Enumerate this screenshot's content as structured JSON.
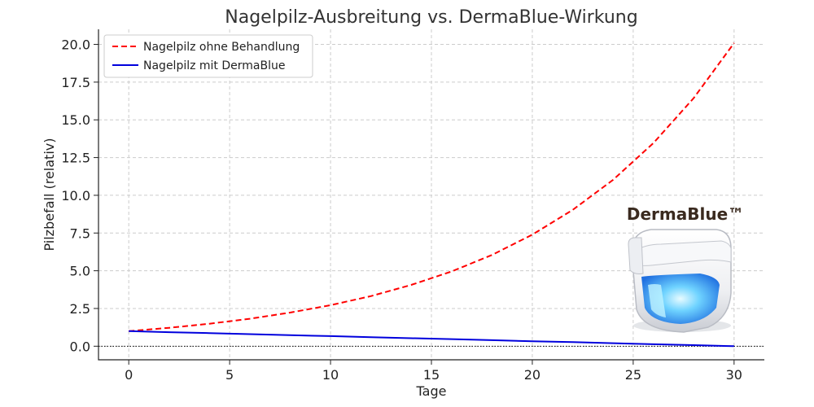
{
  "chart_data": {
    "type": "line",
    "title": "Nagelpilz-Ausbreitung vs. DermaBlue-Wirkung",
    "xlabel": "Tage",
    "ylabel": "Pilzbefall (relativ)",
    "xlim": [
      -1.5,
      31.5
    ],
    "ylim": [
      -0.9,
      21.0
    ],
    "xticks": [
      0,
      5,
      10,
      15,
      20,
      25,
      30
    ],
    "xtick_labels": [
      "0",
      "5",
      "10",
      "15",
      "20",
      "25",
      "30"
    ],
    "yticks": [
      0,
      2.5,
      5,
      7.5,
      10,
      12.5,
      15,
      17.5,
      20
    ],
    "ytick_labels": [
      "0.0",
      "2.5",
      "5.0",
      "7.5",
      "10.0",
      "12.5",
      "15.0",
      "17.5",
      "20.0"
    ],
    "grid": true,
    "legend_position": "top-left",
    "reference_line": {
      "y": 0,
      "style": "dotted",
      "color": "#000000"
    },
    "x": [
      0,
      2,
      4,
      6,
      8,
      10,
      12,
      14,
      16,
      18,
      20,
      22,
      24,
      26,
      28,
      30
    ],
    "series": [
      {
        "name": "Nagelpilz ohne Behandlung",
        "color": "#ff0000",
        "style": "dashed",
        "values": [
          1.0,
          1.22,
          1.49,
          1.82,
          2.23,
          2.72,
          3.32,
          4.06,
          4.95,
          6.05,
          7.39,
          9.03,
          11.02,
          13.46,
          16.44,
          20.09
        ]
      },
      {
        "name": "Nagelpilz mit DermaBlue",
        "color": "#0000dd",
        "style": "solid",
        "values": [
          1.0,
          0.93,
          0.87,
          0.8,
          0.73,
          0.67,
          0.6,
          0.53,
          0.47,
          0.4,
          0.33,
          0.27,
          0.2,
          0.13,
          0.07,
          0.0
        ]
      }
    ]
  },
  "product": {
    "brand_name": "DermaBlue™",
    "icon": "uv-nail-lamp-icon",
    "glow_color": "#3ab8ff"
  }
}
